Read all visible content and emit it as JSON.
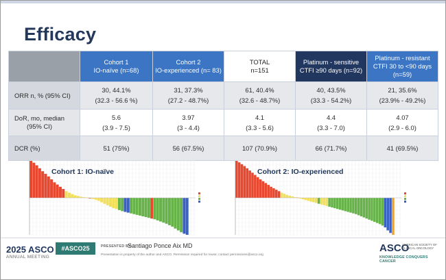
{
  "title": "Efficacy",
  "table": {
    "headers": [
      {
        "line1": "Cohort 1",
        "line2": "IO-naïve (n=68)"
      },
      {
        "line1": "Cohort 2",
        "line2": "IO-experienced (n= 83)"
      },
      {
        "line1": "TOTAL",
        "line2": "n=151"
      },
      {
        "line1": "Platinum - sensitive",
        "line2": "CTFI ≥90 days (n=92)"
      },
      {
        "line1": "Platinum - resistant",
        "line2": "CTFI 30 to <90 days (n=59)"
      }
    ],
    "rows": [
      {
        "label": "ORR n, % (95% CI)",
        "cells": [
          {
            "main": "30, 44.1%",
            "sub": "(32.3 - 56.6 %)"
          },
          {
            "main": "31, 37.3%",
            "sub": "(27.2 - 48.7%)"
          },
          {
            "main": "61, 40.4%",
            "sub": "(32.6 - 48.7%)"
          },
          {
            "main": "40, 43.5%",
            "sub": "(33.3 - 54.2%)"
          },
          {
            "main": "21, 35.6%",
            "sub": "(23.9% - 49.2%)"
          }
        ]
      },
      {
        "label_line1": "DoR, mo, median",
        "label_line2": "(95% CI)",
        "cells": [
          {
            "main": "5.6",
            "sub": "(3.9 - 7.5)"
          },
          {
            "main": "3.97",
            "sub": "(3 - 4.4)"
          },
          {
            "main": "4.1",
            "sub": "(3.3 - 5.6)"
          },
          {
            "main": "4.4",
            "sub": "(3.3 - 7.0)"
          },
          {
            "main": "4.07",
            "sub": "(2.9 - 6.0)"
          }
        ]
      },
      {
        "label": "DCR (%)",
        "cells": [
          {
            "main": "51 (75%)"
          },
          {
            "main": "56 (67.5%)"
          },
          {
            "main": "107 (70.9%)"
          },
          {
            "main": "66 (71.7%)"
          },
          {
            "main": "41 (69.5%)"
          }
        ]
      }
    ]
  },
  "colors": {
    "header_blue": "#3c75c4",
    "header_navy": "#21375f",
    "title": "#24385b",
    "pd": "#e8482f",
    "sd": "#f2df5a",
    "pr": "#67b34a",
    "cr": "#3a62c4",
    "ne": "#f0a030"
  },
  "chart_data": [
    {
      "type": "bar",
      "title": "Cohort 1: IO-naïve",
      "note": "waterfall of best % change per patient; legend labels illegible",
      "bars": [
        {
          "v": 100,
          "c": "pd"
        },
        {
          "v": 95,
          "c": "pd"
        },
        {
          "v": 88,
          "c": "pd"
        },
        {
          "v": 80,
          "c": "pd"
        },
        {
          "v": 72,
          "c": "pd"
        },
        {
          "v": 65,
          "c": "pd"
        },
        {
          "v": 58,
          "c": "pd"
        },
        {
          "v": 50,
          "c": "pd"
        },
        {
          "v": 42,
          "c": "pd"
        },
        {
          "v": 36,
          "c": "pd"
        },
        {
          "v": 30,
          "c": "pd"
        },
        {
          "v": 24,
          "c": "pd"
        },
        {
          "v": 18,
          "c": "sd"
        },
        {
          "v": 14,
          "c": "sd"
        },
        {
          "v": 10,
          "c": "sd"
        },
        {
          "v": 7,
          "c": "sd"
        },
        {
          "v": 5,
          "c": "sd"
        },
        {
          "v": 3,
          "c": "sd"
        },
        {
          "v": 2,
          "c": "sd"
        },
        {
          "v": 1,
          "c": "sd"
        },
        {
          "v": -1,
          "c": "pd"
        },
        {
          "v": -3,
          "c": "sd"
        },
        {
          "v": -5,
          "c": "sd"
        },
        {
          "v": -8,
          "c": "sd"
        },
        {
          "v": -12,
          "c": "sd"
        },
        {
          "v": -16,
          "c": "sd"
        },
        {
          "v": -20,
          "c": "sd"
        },
        {
          "v": -24,
          "c": "sd"
        },
        {
          "v": -28,
          "c": "sd"
        },
        {
          "v": -30,
          "c": "sd"
        },
        {
          "v": -33,
          "c": "pr"
        },
        {
          "v": -36,
          "c": "pr"
        },
        {
          "v": -38,
          "c": "cr"
        },
        {
          "v": -40,
          "c": "cr"
        },
        {
          "v": -42,
          "c": "pr"
        },
        {
          "v": -44,
          "c": "pr"
        },
        {
          "v": -46,
          "c": "pr"
        },
        {
          "v": -48,
          "c": "pr"
        },
        {
          "v": -50,
          "c": "pr"
        },
        {
          "v": -52,
          "c": "pr"
        },
        {
          "v": -54,
          "c": "pr"
        },
        {
          "v": -56,
          "c": "pd"
        },
        {
          "v": -58,
          "c": "pr"
        },
        {
          "v": -61,
          "c": "pr"
        },
        {
          "v": -64,
          "c": "pr"
        },
        {
          "v": -67,
          "c": "pr"
        },
        {
          "v": -70,
          "c": "pr"
        },
        {
          "v": -74,
          "c": "pr"
        },
        {
          "v": -78,
          "c": "pr"
        },
        {
          "v": -83,
          "c": "pr"
        },
        {
          "v": -88,
          "c": "pr"
        },
        {
          "v": -93,
          "c": "pr"
        },
        {
          "v": -97,
          "c": "cr"
        },
        {
          "v": -100,
          "c": "cr"
        }
      ]
    },
    {
      "type": "bar",
      "title": "Cohort 2: IO-experienced",
      "note": "waterfall of best % change per patient; legend labels illegible",
      "bars": [
        {
          "v": 100,
          "c": "pd"
        },
        {
          "v": 96,
          "c": "pd"
        },
        {
          "v": 91,
          "c": "pd"
        },
        {
          "v": 86,
          "c": "pd"
        },
        {
          "v": 80,
          "c": "pd"
        },
        {
          "v": 74,
          "c": "pd"
        },
        {
          "v": 68,
          "c": "pd"
        },
        {
          "v": 62,
          "c": "pd"
        },
        {
          "v": 56,
          "c": "pd"
        },
        {
          "v": 50,
          "c": "pd"
        },
        {
          "v": 45,
          "c": "pd"
        },
        {
          "v": 40,
          "c": "pd"
        },
        {
          "v": 35,
          "c": "pd"
        },
        {
          "v": 30,
          "c": "pd"
        },
        {
          "v": 26,
          "c": "pd"
        },
        {
          "v": 22,
          "c": "pd"
        },
        {
          "v": 18,
          "c": "pd"
        },
        {
          "v": 14,
          "c": "sd"
        },
        {
          "v": 11,
          "c": "sd"
        },
        {
          "v": 8,
          "c": "sd"
        },
        {
          "v": 6,
          "c": "sd"
        },
        {
          "v": 4,
          "c": "sd"
        },
        {
          "v": 2,
          "c": "sd"
        },
        {
          "v": 1,
          "c": "ne"
        },
        {
          "v": -2,
          "c": "sd"
        },
        {
          "v": -4,
          "c": "sd"
        },
        {
          "v": -6,
          "c": "sd"
        },
        {
          "v": -8,
          "c": "sd"
        },
        {
          "v": -10,
          "c": "sd"
        },
        {
          "v": -12,
          "c": "sd"
        },
        {
          "v": -14,
          "c": "sd"
        },
        {
          "v": -16,
          "c": "pr"
        },
        {
          "v": -18,
          "c": "sd"
        },
        {
          "v": -20,
          "c": "sd"
        },
        {
          "v": -22,
          "c": "sd"
        },
        {
          "v": -24,
          "c": "pr"
        },
        {
          "v": -26,
          "c": "pr"
        },
        {
          "v": -28,
          "c": "pr"
        },
        {
          "v": -30,
          "c": "pr"
        },
        {
          "v": -32,
          "c": "pr"
        },
        {
          "v": -34,
          "c": "pr"
        },
        {
          "v": -36,
          "c": "pr"
        },
        {
          "v": -38,
          "c": "pr"
        },
        {
          "v": -40,
          "c": "pr"
        },
        {
          "v": -42,
          "c": "pr"
        },
        {
          "v": -44,
          "c": "pr"
        },
        {
          "v": -47,
          "c": "pr"
        },
        {
          "v": -50,
          "c": "pr"
        },
        {
          "v": -53,
          "c": "pr"
        },
        {
          "v": -56,
          "c": "pr"
        },
        {
          "v": -59,
          "c": "pr"
        },
        {
          "v": -62,
          "c": "pr"
        },
        {
          "v": -65,
          "c": "pr"
        },
        {
          "v": -68,
          "c": "pr"
        },
        {
          "v": -71,
          "c": "pr"
        },
        {
          "v": -75,
          "c": "pr"
        },
        {
          "v": -80,
          "c": "cr"
        },
        {
          "v": -88,
          "c": "cr"
        },
        {
          "v": -95,
          "c": "cr"
        },
        {
          "v": -100,
          "c": "ne"
        }
      ]
    }
  ],
  "footer": {
    "year": "2025 ASCO",
    "meeting": "ANNUAL MEETING",
    "hashtag": "#ASCO25",
    "presented_by": "PRESENTED BY:",
    "presenter": "Santiago Ponce Aix MD",
    "notice": "Presentation is property of the author and ASCO. Permission required for reuse; contact permissions@asco.org",
    "logo": "ASCO",
    "logo_sub": "AMERICAN SOCIETY OF CLINICAL ONCOLOGY",
    "tagline": "KNOWLEDGE CONQUERS CANCER"
  }
}
